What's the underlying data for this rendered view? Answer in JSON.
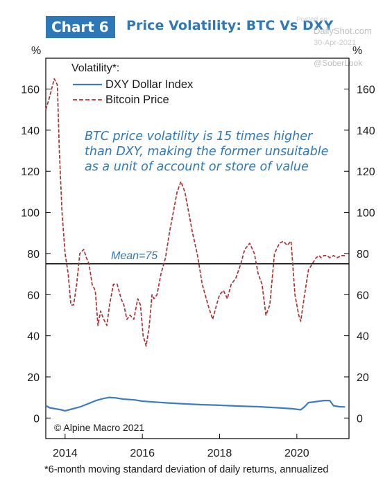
{
  "header": {
    "badge": "Chart 6",
    "title": "Price Volatility: BTC Vs DXY"
  },
  "watermark": {
    "posted": "Posted on",
    "site": "DailyShot.com",
    "date": "30-Apr-2021",
    "handle": "@SoberLook"
  },
  "footnote": "*6-month moving standard deviation of daily returns, annualized",
  "colors": {
    "accent": "#2e78b7",
    "dxy": "#3b7cc3",
    "btc": "#b03030",
    "mean_line": "#000000"
  },
  "chart_data": {
    "type": "line",
    "ylabel_left": "%",
    "ylabel_right": "%",
    "ylim": [
      -10,
      175
    ],
    "y_ticks": [
      0,
      20,
      40,
      60,
      80,
      100,
      120,
      140,
      160
    ],
    "x_range": [
      2013.5,
      2021.35
    ],
    "x_ticks": [
      "2014",
      "2016",
      "2018",
      "2020"
    ],
    "x_tick_values": [
      2014,
      2016,
      2018,
      2020
    ],
    "grid": false,
    "legend_title": "Volatility*:",
    "legend_position": "top-left",
    "annotation": "BTC price volatility is 15 times higher than DXY, making the former unsuitable as a unit of account or store of value",
    "mean_label": "Mean=75",
    "mean_value": 75,
    "source": "© Alpine Macro 2021",
    "series": [
      {
        "name": "DXY Dollar Index",
        "style": "solid",
        "x": [
          2013.5,
          2013.6,
          2013.75,
          2013.9,
          2014.0,
          2014.2,
          2014.4,
          2014.6,
          2014.8,
          2015.0,
          2015.15,
          2015.3,
          2015.5,
          2015.8,
          2016.0,
          2016.3,
          2016.6,
          2017.0,
          2017.5,
          2018.0,
          2018.5,
          2019.0,
          2019.5,
          2019.9,
          2020.1,
          2020.2,
          2020.3,
          2020.5,
          2020.7,
          2020.85,
          2020.95,
          2021.1,
          2021.25
        ],
        "y": [
          6.0,
          5.0,
          4.5,
          4.0,
          3.5,
          4.5,
          5.5,
          7.0,
          8.5,
          9.5,
          10.0,
          9.8,
          9.2,
          8.8,
          8.2,
          7.8,
          7.4,
          7.0,
          6.5,
          6.2,
          5.8,
          5.5,
          5.0,
          4.5,
          4.0,
          5.5,
          7.5,
          8.0,
          8.5,
          8.5,
          6.0,
          5.5,
          5.4
        ]
      },
      {
        "name": "Bitcoin Price",
        "style": "dashed",
        "x": [
          2013.5,
          2013.58,
          2013.65,
          2013.72,
          2013.8,
          2013.85,
          2013.92,
          2014.0,
          2014.08,
          2014.15,
          2014.22,
          2014.3,
          2014.38,
          2014.48,
          2014.55,
          2014.62,
          2014.7,
          2014.78,
          2014.85,
          2014.92,
          2015.0,
          2015.08,
          2015.15,
          2015.25,
          2015.35,
          2015.45,
          2015.52,
          2015.6,
          2015.68,
          2015.78,
          2015.88,
          2015.95,
          2016.02,
          2016.1,
          2016.18,
          2016.25,
          2016.3,
          2016.38,
          2016.48,
          2016.6,
          2016.7,
          2016.8,
          2016.9,
          2017.0,
          2017.1,
          2017.2,
          2017.3,
          2017.42,
          2017.55,
          2017.7,
          2017.82,
          2017.92,
          2018.0,
          2018.1,
          2018.2,
          2018.3,
          2018.42,
          2018.55,
          2018.65,
          2018.78,
          2018.9,
          2019.0,
          2019.1,
          2019.2,
          2019.3,
          2019.42,
          2019.55,
          2019.65,
          2019.75,
          2019.85,
          2019.95,
          2020.05,
          2020.1,
          2020.2,
          2020.3,
          2020.4,
          2020.5,
          2020.58,
          2020.62,
          2020.7,
          2020.78,
          2020.85,
          2020.95,
          2021.05,
          2021.15,
          2021.28
        ],
        "y": [
          150,
          155,
          160,
          165,
          162,
          130,
          100,
          80,
          70,
          55,
          55,
          65,
          80,
          82,
          78,
          75,
          65,
          62,
          45,
          52,
          48,
          45,
          55,
          65,
          65,
          58,
          55,
          48,
          50,
          48,
          58,
          55,
          40,
          35,
          45,
          60,
          58,
          60,
          70,
          78,
          90,
          100,
          110,
          115,
          110,
          100,
          90,
          80,
          65,
          55,
          48,
          55,
          60,
          62,
          58,
          65,
          68,
          75,
          82,
          85,
          80,
          70,
          65,
          50,
          55,
          80,
          85,
          86,
          84,
          86,
          60,
          50,
          47,
          60,
          72,
          75,
          78,
          79,
          78,
          79,
          79,
          78,
          79,
          78,
          79,
          79
        ]
      }
    ]
  }
}
